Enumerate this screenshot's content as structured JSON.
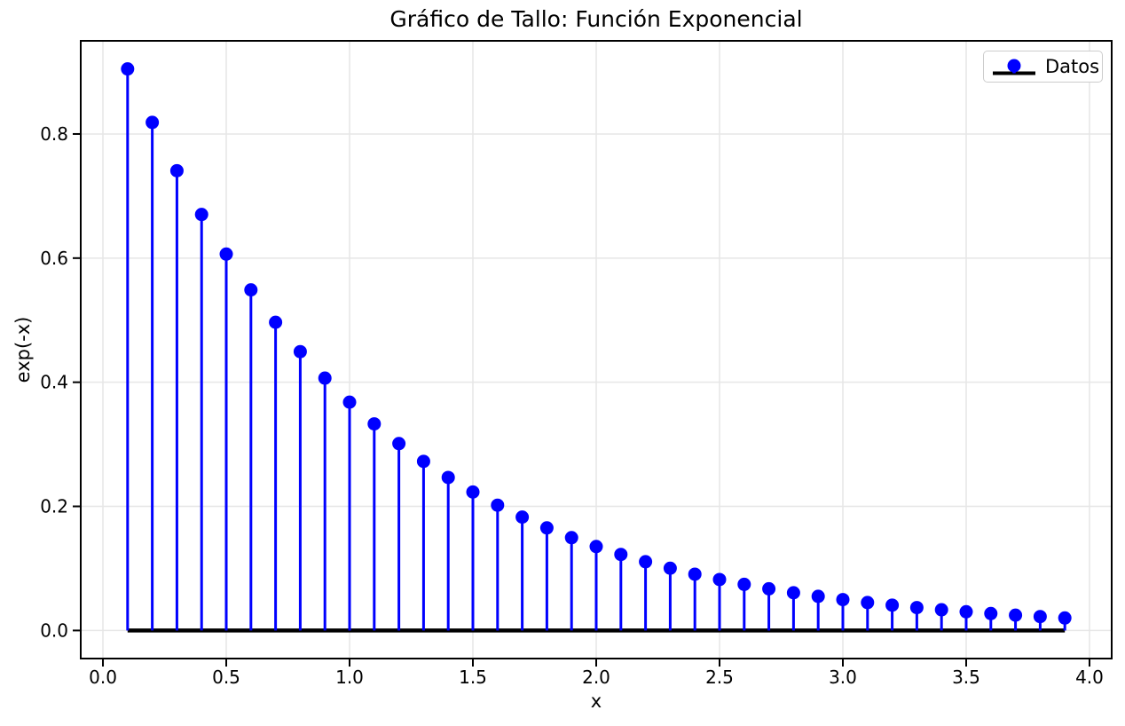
{
  "figure": {
    "background": "#ffffff"
  },
  "chart_data": {
    "type": "stem",
    "title": "Gráfico de Tallo: Función Exponencial",
    "xlabel": "x",
    "ylabel": "exp(-x)",
    "legend": {
      "label": "Datos",
      "position": "upper right"
    },
    "x": [
      0.1,
      0.2,
      0.3,
      0.4,
      0.5,
      0.6,
      0.7,
      0.8,
      0.9,
      1.0,
      1.1,
      1.2,
      1.3,
      1.4,
      1.5,
      1.6,
      1.7,
      1.8,
      1.9,
      2.0,
      2.1,
      2.2,
      2.3,
      2.4,
      2.5,
      2.6,
      2.7,
      2.8,
      2.9,
      3.0,
      3.1,
      3.2,
      3.3,
      3.4,
      3.5,
      3.6,
      3.7,
      3.8,
      3.9
    ],
    "y": [
      0.9048,
      0.8187,
      0.7408,
      0.6703,
      0.6065,
      0.5488,
      0.4966,
      0.4493,
      0.4066,
      0.3679,
      0.3329,
      0.3012,
      0.2725,
      0.2466,
      0.2231,
      0.2019,
      0.1827,
      0.1653,
      0.1496,
      0.1353,
      0.1225,
      0.1108,
      0.1003,
      0.0907,
      0.0821,
      0.0743,
      0.0672,
      0.0608,
      0.055,
      0.0498,
      0.045,
      0.0408,
      0.0369,
      0.0334,
      0.0302,
      0.0273,
      0.0247,
      0.0224,
      0.0202
    ],
    "baseline_y": 0.0,
    "xlim": [
      -0.09,
      4.09
    ],
    "ylim": [
      -0.0452,
      0.9501
    ],
    "xticks": [
      0.0,
      0.5,
      1.0,
      1.5,
      2.0,
      2.5,
      3.0,
      3.5,
      4.0
    ],
    "xtick_labels": [
      "0.0",
      "0.5",
      "1.0",
      "1.5",
      "2.0",
      "2.5",
      "3.0",
      "3.5",
      "4.0"
    ],
    "yticks": [
      0.0,
      0.2,
      0.4,
      0.6,
      0.8
    ],
    "ytick_labels": [
      "0.0",
      "0.2",
      "0.4",
      "0.6",
      "0.8"
    ],
    "grid": true,
    "colors": {
      "stem": "#0000ff",
      "marker": "#0000ff",
      "baseline": "#000000",
      "grid": "#e6e6e6",
      "spine": "#000000",
      "text": "#000000"
    }
  }
}
